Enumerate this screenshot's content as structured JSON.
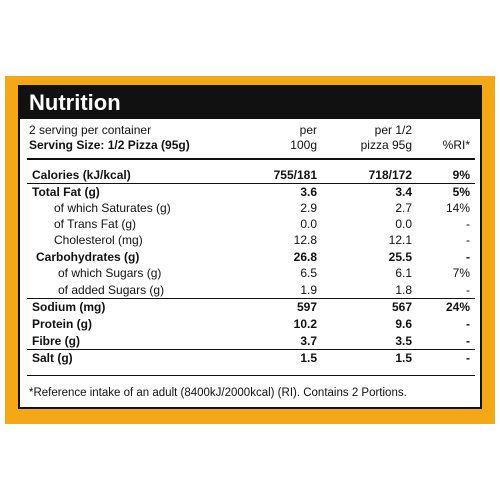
{
  "colors": {
    "frame": "#f5a816",
    "title_bar": "#111111",
    "title_text": "#ffffff"
  },
  "title": "Nutrition",
  "header": {
    "servings": "2 serving per container",
    "serving_size": "Serving Size: 1/2 Pizza (95g)",
    "per100_line1": "per",
    "per100_line2": "100g",
    "perhalf_line1": "per 1/2",
    "perhalf_line2": "pizza 95g",
    "ri": "%RI*"
  },
  "rows": [
    {
      "label": "Calories (kJ/kcal)",
      "per100": "755/181",
      "perhalf": "718/172",
      "ri": "9%",
      "bold": true
    },
    {
      "label": "Total Fat (g)",
      "per100": "3.6",
      "perhalf": "3.4",
      "ri": "5%",
      "bold": true
    },
    {
      "label": "of which Saturates (g)",
      "per100": "2.9",
      "perhalf": "2.7",
      "ri": "14%",
      "bold": false
    },
    {
      "label": "of Trans Fat (g)",
      "per100": "0.0",
      "perhalf": "0.0",
      "ri": "-",
      "bold": false
    },
    {
      "label": "Cholesterol (mg)",
      "per100": "12.8",
      "perhalf": "12.1",
      "ri": "-",
      "bold": false
    },
    {
      "label": "Carbohydrates (g)",
      "per100": "26.8",
      "perhalf": "25.5",
      "ri": "-",
      "bold": true
    },
    {
      "label": "of which Sugars (g)",
      "per100": "6.5",
      "perhalf": "6.1",
      "ri": "7%",
      "bold": false
    },
    {
      "label": "of added Sugars (g)",
      "per100": "1.9",
      "perhalf": "1.8",
      "ri": "-",
      "bold": false
    },
    {
      "label": "Sodium (mg)",
      "per100": "597",
      "perhalf": "567",
      "ri": "24%",
      "bold": true
    },
    {
      "label": "Protein (g)",
      "per100": "10.2",
      "perhalf": "9.6",
      "ri": "-",
      "bold": true
    },
    {
      "label": "Fibre (g)",
      "per100": "3.7",
      "perhalf": "3.5",
      "ri": "-",
      "bold": true
    },
    {
      "label": "Salt (g)",
      "per100": "1.5",
      "perhalf": "1.5",
      "ri": "-",
      "bold": true
    }
  ],
  "footnote": "*Reference intake of an adult (8400kJ/2000kcal) (RI). Contains 2 Portions."
}
